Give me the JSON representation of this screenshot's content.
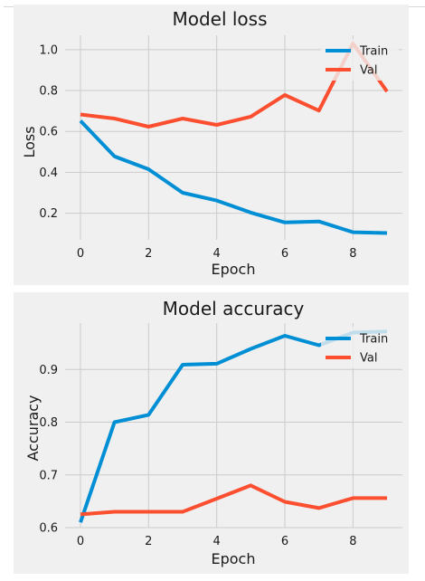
{
  "chart_data": [
    {
      "type": "line",
      "title": "Model loss",
      "xlabel": "Epoch",
      "ylabel": "Loss",
      "x": [
        0,
        1,
        2,
        3,
        4,
        5,
        6,
        7,
        8,
        9
      ],
      "xlim": [
        -0.45,
        9.45
      ],
      "ylim": [
        0.07,
        1.07
      ],
      "xticks": [
        0,
        2,
        4,
        6,
        8
      ],
      "yticks": [
        0.2,
        0.4,
        0.6,
        0.8,
        1.0
      ],
      "ytick_labels": [
        "0.2",
        "0.4",
        "0.6",
        "0.8",
        "1.0"
      ],
      "grid": true,
      "legend_position": "top-right",
      "series": [
        {
          "name": "Train",
          "color": "#008fd5",
          "values": [
            0.652,
            0.478,
            0.415,
            0.3,
            0.262,
            0.203,
            0.155,
            0.16,
            0.107,
            0.103
          ]
        },
        {
          "name": "Val",
          "color": "#fc4f30",
          "values": [
            0.683,
            0.663,
            0.623,
            0.663,
            0.632,
            0.672,
            0.778,
            0.702,
            1.03,
            0.795
          ]
        }
      ]
    },
    {
      "type": "line",
      "title": "Model accuracy",
      "xlabel": "Epoch",
      "ylabel": "Accuracy",
      "x": [
        0,
        1,
        2,
        3,
        4,
        5,
        6,
        7,
        8,
        9
      ],
      "xlim": [
        -0.45,
        9.45
      ],
      "ylim": [
        0.6,
        0.988
      ],
      "xticks": [
        0,
        2,
        4,
        6,
        8
      ],
      "yticks": [
        0.6,
        0.7,
        0.8,
        0.9
      ],
      "ytick_labels": [
        "0.6",
        "0.7",
        "0.8",
        "0.9"
      ],
      "grid": true,
      "legend_position": "top-right",
      "series": [
        {
          "name": "Train",
          "color": "#008fd5",
          "values": [
            0.61,
            0.8,
            0.814,
            0.909,
            0.911,
            0.939,
            0.964,
            0.946,
            0.97,
            0.972
          ]
        },
        {
          "name": "Val",
          "color": "#fc4f30",
          "values": [
            0.625,
            0.63,
            0.63,
            0.63,
            0.655,
            0.68,
            0.649,
            0.637,
            0.656,
            0.656
          ]
        }
      ]
    }
  ]
}
